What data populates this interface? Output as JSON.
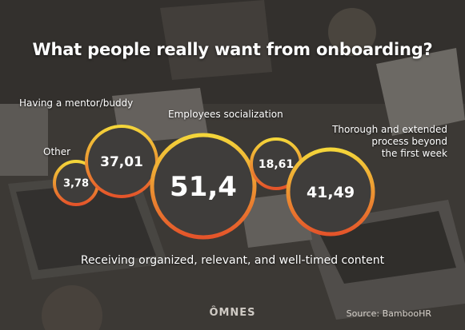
{
  "chart_data": {
    "type": "bubble",
    "title": "What people really want from onboarding?",
    "series": [
      {
        "label": "Other",
        "value": 3.78,
        "value_text": "3,78"
      },
      {
        "label": "Having a mentor/buddy",
        "value": 37.01,
        "value_text": "37,01"
      },
      {
        "label": "Receiving organized, relevant, and well-timed content",
        "value": 51.4,
        "value_text": "51,4"
      },
      {
        "label": "Employees socialization",
        "value": 18.61,
        "value_text": "18,61"
      },
      {
        "label": "Thorough and extended process beyond the first week",
        "value": 41.49,
        "value_text": "41,49"
      }
    ],
    "label_lines": {
      "thorough": [
        "Thorough and extended",
        "process beyond",
        "the first week"
      ]
    },
    "colors": {
      "ring_top": "#f4d63a",
      "ring_bottom": "#e4542a",
      "bubble_fill": "#3f3d3b",
      "text": "#ffffff"
    }
  },
  "brand": "ÔMNES",
  "source": "Source: BambooHR"
}
